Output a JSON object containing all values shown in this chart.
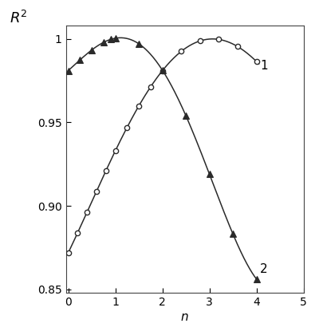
{
  "title": "",
  "xlabel": "n",
  "ylabel": "R^2",
  "xlim": [
    -0.05,
    5
  ],
  "ylim": [
    0.848,
    1.008
  ],
  "yticks": [
    0.85,
    0.9,
    0.95,
    1
  ],
  "xticks": [
    0,
    1,
    2,
    3,
    4,
    5
  ],
  "curve1_x": [
    0.0,
    0.25,
    0.5,
    0.75,
    1.0,
    1.25,
    1.5,
    1.75,
    2.0,
    2.25,
    2.5,
    2.75,
    3.0,
    3.25,
    3.5,
    3.75,
    4.0
  ],
  "curve1_y": [
    0.872,
    0.887,
    0.902,
    0.918,
    0.933,
    0.947,
    0.96,
    0.971,
    0.981,
    0.989,
    0.994,
    0.998,
    1.0,
    0.999,
    0.997,
    0.993,
    0.986
  ],
  "curve2_x": [
    0.0,
    0.25,
    0.5,
    0.75,
    1.0,
    1.25,
    1.5,
    1.75,
    2.0,
    2.25,
    2.5,
    2.75,
    3.0,
    3.25,
    3.5,
    3.75,
    4.0
  ],
  "curve2_y": [
    0.978,
    0.99,
    0.996,
    0.999,
    0.999,
    0.998,
    0.995,
    0.989,
    0.981,
    0.97,
    0.956,
    0.94,
    0.921,
    0.9,
    0.876,
    0.869,
    0.858
  ],
  "marker1_x": [
    0.0,
    0.2,
    0.4,
    0.6,
    0.8,
    1.0,
    1.25,
    1.5,
    1.75,
    2.0,
    2.4,
    2.8,
    3.2,
    3.6,
    4.0
  ],
  "marker1_y": [
    0.872,
    0.883,
    0.897,
    0.912,
    0.928,
    0.933,
    0.947,
    0.96,
    0.971,
    0.981,
    0.993,
    0.999,
    0.999,
    0.994,
    0.986
  ],
  "marker2_x": [
    0.0,
    0.25,
    0.5,
    0.75,
    0.9,
    1.0,
    1.5,
    2.0,
    2.5,
    3.0,
    3.5,
    4.0
  ],
  "marker2_y": [
    0.978,
    0.99,
    0.996,
    0.999,
    0.999,
    0.999,
    0.995,
    0.981,
    0.956,
    0.921,
    0.876,
    0.858
  ],
  "label1": "1",
  "label2": "2",
  "line_color": "#2a2a2a",
  "background_color": "#ffffff"
}
